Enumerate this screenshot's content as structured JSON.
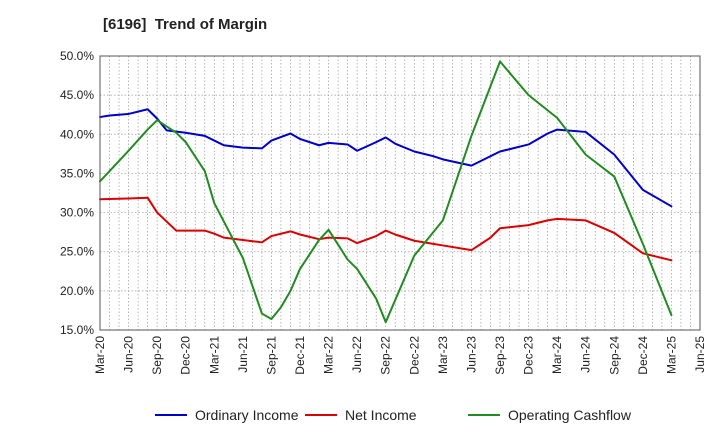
{
  "chart_data": {
    "type": "line",
    "title": "[6196]  Trend of Margin",
    "xlabel": "",
    "ylabel": "",
    "x": [
      "Mar-20",
      "Jun-20",
      "Sep-20",
      "Dec-20",
      "Mar-21",
      "Jun-21",
      "Sep-21",
      "Dec-21",
      "Mar-22",
      "Jun-22",
      "Sep-22",
      "Dec-22",
      "Mar-23",
      "Jun-23",
      "Sep-23",
      "Dec-23",
      "Mar-24",
      "Jun-24",
      "Sep-24",
      "Dec-24",
      "Mar-25",
      "Jun-25"
    ],
    "x_tick_labels": [
      "Mar-20",
      "Jun-20",
      "Sep-20",
      "Dec-20",
      "Mar-21",
      "Jun-21",
      "Sep-21",
      "Dec-21",
      "Mar-22",
      "Jun-22",
      "Sep-22",
      "Dec-22",
      "Mar-23",
      "Jun-23",
      "Sep-23",
      "Dec-23",
      "Mar-24",
      "Jun-24",
      "Sep-24",
      "Dec-24",
      "Mar-25",
      "Jun-25"
    ],
    "y_ticks": [
      15.0,
      20.0,
      25.0,
      30.0,
      35.0,
      40.0,
      45.0,
      50.0
    ],
    "y_tick_labels": [
      "15.0%",
      "20.0%",
      "25.0%",
      "30.0%",
      "35.0%",
      "40.0%",
      "45.0%",
      "50.0%"
    ],
    "ylim": [
      15,
      50
    ],
    "grid": true,
    "legend_position": "bottom",
    "series": [
      {
        "name": "Ordinary Income",
        "color": "#0000cc",
        "points": [
          [
            "Mar-20",
            42.2
          ],
          [
            "Apr-20",
            42.4
          ],
          [
            "Jun-20",
            42.6
          ],
          [
            "Aug-20",
            43.2
          ],
          [
            "Sep-20",
            42.0
          ],
          [
            "Oct-20",
            40.5
          ],
          [
            "Dec-20",
            40.2
          ],
          [
            "Feb-21",
            39.8
          ],
          [
            "Mar-21",
            39.2
          ],
          [
            "Apr-21",
            38.6
          ],
          [
            "Jun-21",
            38.3
          ],
          [
            "Aug-21",
            38.2
          ],
          [
            "Sep-21",
            39.2
          ],
          [
            "Nov-21",
            40.1
          ],
          [
            "Dec-21",
            39.4
          ],
          [
            "Feb-22",
            38.6
          ],
          [
            "Mar-22",
            38.9
          ],
          [
            "May-22",
            38.7
          ],
          [
            "Jun-22",
            37.9
          ],
          [
            "Aug-22",
            39.0
          ],
          [
            "Sep-22",
            39.6
          ],
          [
            "Oct-22",
            38.8
          ],
          [
            "Dec-22",
            37.8
          ],
          [
            "Feb-23",
            37.2
          ],
          [
            "Mar-23",
            36.8
          ],
          [
            "Jun-23",
            36.0
          ],
          [
            "Sep-23",
            37.8
          ],
          [
            "Dec-23",
            38.7
          ],
          [
            "Feb-24",
            40.1
          ],
          [
            "Mar-24",
            40.6
          ],
          [
            "Jun-24",
            40.3
          ],
          [
            "Sep-24",
            37.4
          ],
          [
            "Dec-24",
            32.9
          ],
          [
            "Mar-25",
            30.8
          ]
        ]
      },
      {
        "name": "Net Income",
        "color": "#dd0000",
        "points": [
          [
            "Mar-20",
            31.7
          ],
          [
            "Jun-20",
            31.8
          ],
          [
            "Aug-20",
            31.9
          ],
          [
            "Sep-20",
            30.0
          ],
          [
            "Nov-20",
            27.7
          ],
          [
            "Dec-20",
            27.7
          ],
          [
            "Feb-21",
            27.7
          ],
          [
            "Mar-21",
            27.3
          ],
          [
            "Apr-21",
            26.8
          ],
          [
            "Jun-21",
            26.5
          ],
          [
            "Aug-21",
            26.2
          ],
          [
            "Sep-21",
            27.0
          ],
          [
            "Nov-21",
            27.6
          ],
          [
            "Dec-21",
            27.2
          ],
          [
            "Feb-22",
            26.6
          ],
          [
            "Mar-22",
            26.8
          ],
          [
            "May-22",
            26.7
          ],
          [
            "Jun-22",
            26.1
          ],
          [
            "Aug-22",
            27.0
          ],
          [
            "Sep-22",
            27.7
          ],
          [
            "Oct-22",
            27.2
          ],
          [
            "Dec-22",
            26.4
          ],
          [
            "Feb-23",
            26.0
          ],
          [
            "Mar-23",
            25.8
          ],
          [
            "Jun-23",
            25.2
          ],
          [
            "Aug-23",
            26.8
          ],
          [
            "Sep-23",
            28.0
          ],
          [
            "Dec-23",
            28.4
          ],
          [
            "Feb-24",
            29.0
          ],
          [
            "Mar-24",
            29.2
          ],
          [
            "Jun-24",
            29.0
          ],
          [
            "Sep-24",
            27.4
          ],
          [
            "Dec-24",
            24.8
          ],
          [
            "Mar-25",
            23.9
          ]
        ]
      },
      {
        "name": "Operating Cashflow",
        "color": "#228b22",
        "points": [
          [
            "Mar-20",
            34.0
          ],
          [
            "May-20",
            36.6
          ],
          [
            "Jun-20",
            37.9
          ],
          [
            "Aug-20",
            40.6
          ],
          [
            "Sep-20",
            41.8
          ],
          [
            "Nov-20",
            40.2
          ],
          [
            "Dec-20",
            39.0
          ],
          [
            "Feb-21",
            35.3
          ],
          [
            "Mar-21",
            31.2
          ],
          [
            "Jun-21",
            24.2
          ],
          [
            "Aug-21",
            17.1
          ],
          [
            "Sep-21",
            16.4
          ],
          [
            "Oct-21",
            17.9
          ],
          [
            "Nov-21",
            20.0
          ],
          [
            "Dec-21",
            22.8
          ],
          [
            "Feb-22",
            26.5
          ],
          [
            "Mar-22",
            27.8
          ],
          [
            "May-22",
            24.0
          ],
          [
            "Jun-22",
            22.8
          ],
          [
            "Aug-22",
            19.0
          ],
          [
            "Sep-22",
            16.0
          ],
          [
            "Dec-22",
            24.5
          ],
          [
            "Mar-23",
            29.0
          ],
          [
            "Jun-23",
            39.8
          ],
          [
            "Sep-23",
            49.3
          ],
          [
            "Dec-23",
            45.0
          ],
          [
            "Mar-24",
            42.1
          ],
          [
            "Jun-24",
            37.4
          ],
          [
            "Sep-24",
            34.6
          ],
          [
            "Dec-24",
            26.0
          ],
          [
            "Mar-25",
            16.9
          ]
        ]
      }
    ]
  }
}
